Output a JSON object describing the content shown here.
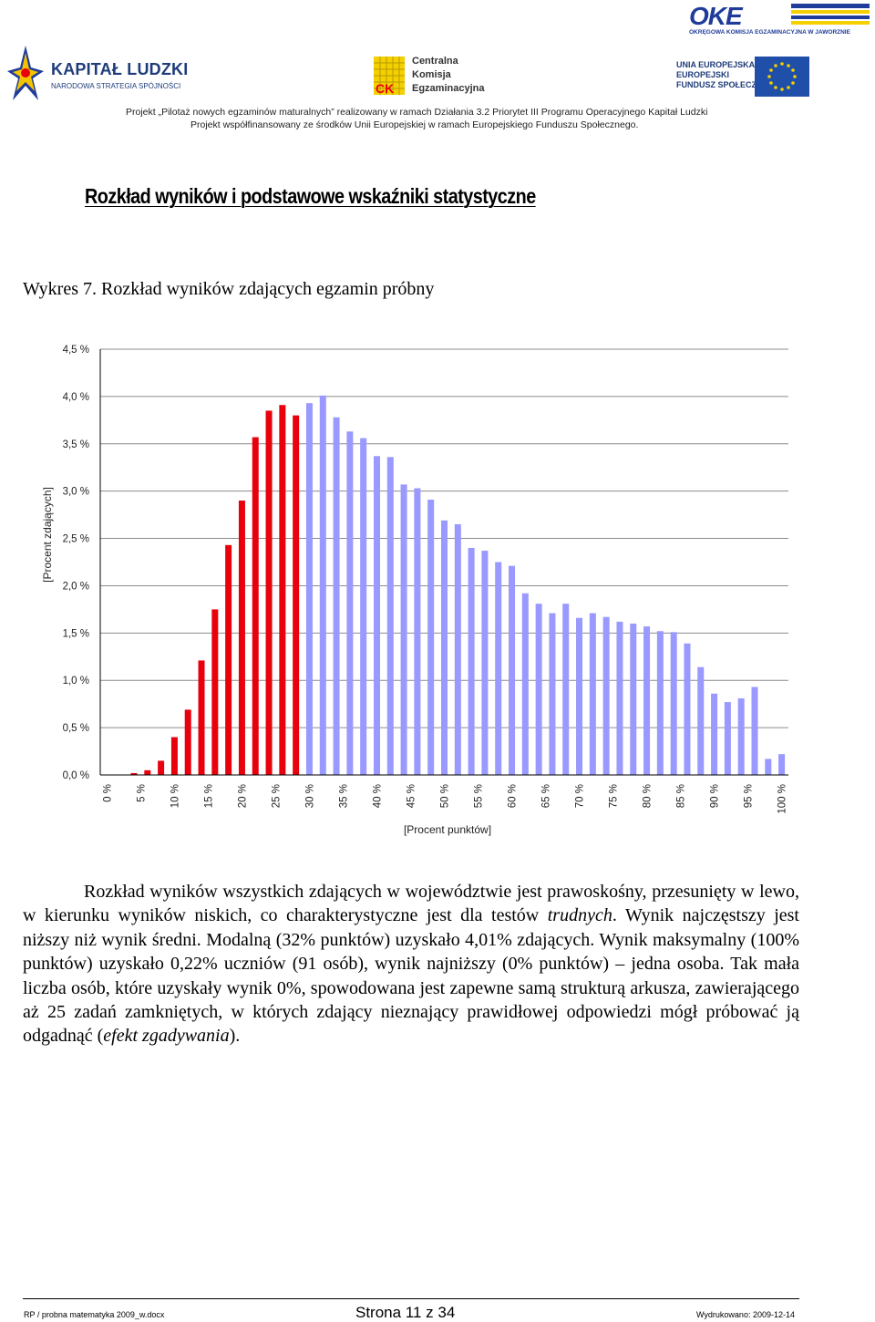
{
  "header": {
    "logo_left": {
      "title": "KAPITAŁ LUDZKI",
      "subtitle": "NARODOWA STRATEGIA SPÓJNOŚCI"
    },
    "logo_center": {
      "line1": "Centralna",
      "line2": "Komisja",
      "line3": "Egzaminacyjna",
      "mark": "CK"
    },
    "logo_right_top": {
      "title": "OKE",
      "subtitle": "OKRĘGOWA KOMISJA EGZAMINACYJNA W JAWORZNIE"
    },
    "logo_right": {
      "line1": "UNIA EUROPEJSKA",
      "line2": "EUROPEJSKI",
      "line3": "FUNDUSZ SPOŁECZNY"
    },
    "project_line1": "Projekt „Pilotaż nowych egzaminów maturalnych” realizowany w ramach Działania 3.2 Priorytet III Programu Operacyjnego Kapitał Ludzki",
    "project_line2": "Projekt  współfinansowany ze środków Unii Europejskiej w ramach Europejskiego Funduszu Społecznego."
  },
  "section_title": "Rozkład wyników i podstawowe wskaźniki statystyczne",
  "chart_caption": "Wykres 7. Rozkład wyników zdających egzamin próbny",
  "chart_data": {
    "type": "bar",
    "xlabel": "[Procent punktów]",
    "ylabel": "[Procent zdających]",
    "ylim": [
      0,
      4.5
    ],
    "yticks": [
      "0,0 %",
      "0,5 %",
      "1,0 %",
      "1,5 %",
      "2,0 %",
      "2,5 %",
      "3,0 %",
      "3,5 %",
      "4,0 %",
      "4,5 %"
    ],
    "ytick_values": [
      0,
      0.5,
      1.0,
      1.5,
      2.0,
      2.5,
      3.0,
      3.5,
      4.0,
      4.5
    ],
    "xticks": [
      "0 %",
      "5 %",
      "10 %",
      "15 %",
      "20 %",
      "25 %",
      "30 %",
      "35 %",
      "40 %",
      "45 %",
      "50 %",
      "55 %",
      "60 %",
      "65 %",
      "70 %",
      "75 %",
      "80 %",
      "85 %",
      "90 %",
      "95 %",
      "100 %"
    ],
    "grid": true,
    "colors": {
      "low": "#e8000d",
      "high": "#9999ff"
    },
    "split_index": 15,
    "values": [
      0.0,
      0.0,
      0.02,
      0.05,
      0.15,
      0.4,
      0.69,
      1.21,
      1.75,
      2.43,
      2.9,
      3.57,
      3.85,
      3.91,
      3.8,
      3.93,
      4.01,
      3.78,
      3.63,
      3.56,
      3.37,
      3.36,
      3.07,
      3.03,
      2.91,
      2.69,
      2.65,
      2.4,
      2.37,
      2.25,
      2.21,
      1.92,
      1.81,
      1.71,
      1.81,
      1.66,
      1.71,
      1.67,
      1.62,
      1.6,
      1.57,
      1.52,
      1.51,
      1.39,
      1.14,
      0.86,
      0.77,
      0.81,
      0.93,
      0.17,
      0.22
    ]
  },
  "paragraph": {
    "p1": "Rozkład wyników wszystkich zdających w województwie jest prawoskośny, przesunięty w lewo, w kierunku wyników niskich, co charakterystyczne jest dla testów ",
    "p1_italic": "trudnych",
    "p2": ". Wynik najczęstszy jest niższy niż wynik średni. Modalną (32% punktów) uzyskało 4,01% zdających. Wynik maksymalny (100% punktów) uzyskało 0,22% uczniów (91 osób), wynik najniższy (0% punktów) – jedna osoba. Tak mała liczba osób, które uzyskały wynik 0%, spowodowana jest zapewne samą strukturą arkusza, zawierającego aż 25 zadań zamkniętych, w których zdający nieznający prawidłowej odpowiedzi mógł próbować ją odgadnąć (",
    "p2_italic": "efekt zgadywania",
    "p3": ")."
  },
  "footer": {
    "left": "RP / probna matematyka 2009_w.docx",
    "center": "Strona 11 z 34",
    "right": "Wydrukowano: 2009-12-14"
  }
}
